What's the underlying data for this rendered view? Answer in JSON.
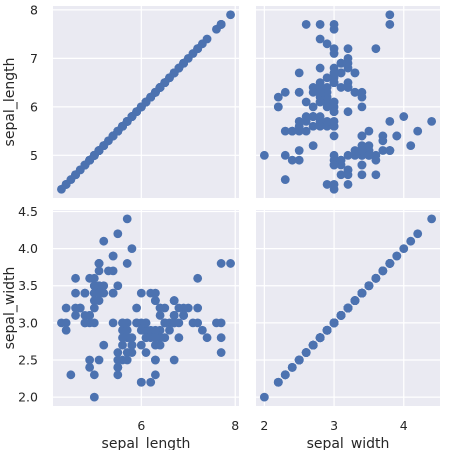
{
  "chart_data": {
    "type": "scatter",
    "kind": "pairplot-scatter-matrix",
    "variables": [
      "sepal_length",
      "sepal_width"
    ],
    "x_labels": [
      "sepal_length",
      "sepal_width"
    ],
    "y_labels": [
      "sepal_length",
      "sepal_width"
    ],
    "x_ticks": [
      [
        6,
        8
      ],
      [
        2,
        3,
        4
      ]
    ],
    "y_ticks": [
      [
        5,
        6,
        7,
        8
      ],
      [
        2.0,
        2.5,
        3.0,
        3.5,
        4.0,
        4.5
      ]
    ],
    "y_tick_labels": [
      [
        "5",
        "6",
        "7",
        "8"
      ],
      [
        "2.0",
        "2.5",
        "3.0",
        "3.5",
        "4.0",
        "4.5"
      ]
    ],
    "ranges": {
      "sepal_length": [
        4.12,
        8.08
      ],
      "sepal_width": [
        1.88,
        4.52
      ]
    },
    "grid": true,
    "point_color": "#4c72b0",
    "background": "#eaeaf2",
    "sepal_length": [
      5.1,
      4.9,
      4.7,
      4.6,
      5.0,
      5.4,
      4.6,
      5.0,
      4.4,
      4.9,
      5.4,
      4.8,
      4.8,
      4.3,
      5.8,
      5.7,
      5.4,
      5.1,
      5.7,
      5.1,
      5.4,
      5.1,
      4.6,
      5.1,
      4.8,
      5.0,
      5.0,
      5.2,
      5.2,
      4.7,
      4.8,
      5.4,
      5.2,
      5.5,
      4.9,
      5.0,
      5.5,
      4.9,
      4.4,
      5.1,
      5.0,
      4.5,
      4.4,
      5.0,
      5.1,
      4.8,
      5.1,
      4.6,
      5.3,
      5.0,
      7.0,
      6.4,
      6.9,
      5.5,
      6.5,
      5.7,
      6.3,
      4.9,
      6.6,
      5.2,
      5.0,
      5.9,
      6.0,
      6.1,
      5.6,
      6.7,
      5.6,
      5.8,
      6.2,
      5.6,
      5.9,
      6.1,
      6.3,
      6.1,
      6.4,
      6.6,
      6.8,
      6.7,
      6.0,
      5.7,
      5.5,
      5.5,
      5.8,
      6.0,
      5.4,
      6.0,
      6.7,
      6.3,
      5.6,
      5.5,
      5.5,
      6.1,
      5.8,
      5.0,
      5.6,
      5.7,
      5.7,
      6.2,
      5.1,
      5.7,
      6.3,
      5.8,
      7.1,
      6.3,
      6.5,
      7.6,
      4.9,
      7.3,
      6.7,
      7.2,
      6.5,
      6.4,
      6.8,
      5.7,
      5.8,
      6.4,
      6.5,
      7.7,
      7.7,
      6.0,
      6.9,
      5.6,
      7.7,
      6.3,
      6.7,
      7.2,
      6.2,
      6.1,
      6.4,
      7.2,
      7.4,
      7.9,
      6.4,
      6.3,
      6.1,
      7.7,
      6.3,
      6.4,
      6.0,
      6.9,
      6.7,
      6.9,
      5.8,
      6.8,
      6.7,
      6.7,
      6.3,
      6.5,
      6.2,
      5.9
    ],
    "sepal_width": [
      3.5,
      3.0,
      3.2,
      3.1,
      3.6,
      3.9,
      3.4,
      3.4,
      2.9,
      3.1,
      3.7,
      3.4,
      3.0,
      3.0,
      4.0,
      4.4,
      3.9,
      3.5,
      3.8,
      3.8,
      3.4,
      3.7,
      3.6,
      3.3,
      3.4,
      3.0,
      3.4,
      3.5,
      3.4,
      3.2,
      3.1,
      3.4,
      4.1,
      4.2,
      3.1,
      3.2,
      3.5,
      3.6,
      3.0,
      3.4,
      3.5,
      2.3,
      3.2,
      3.5,
      3.8,
      3.0,
      3.8,
      3.2,
      3.7,
      3.3,
      3.2,
      3.2,
      3.1,
      2.3,
      2.8,
      2.8,
      3.3,
      2.4,
      2.9,
      2.7,
      2.0,
      3.0,
      2.2,
      2.9,
      2.9,
      3.1,
      3.0,
      2.7,
      2.2,
      2.5,
      3.2,
      2.8,
      2.5,
      2.8,
      2.9,
      3.0,
      2.8,
      3.0,
      2.9,
      2.6,
      2.4,
      2.4,
      2.7,
      2.7,
      3.0,
      3.4,
      3.1,
      2.3,
      3.0,
      2.5,
      2.6,
      3.0,
      2.6,
      2.3,
      2.7,
      3.0,
      2.9,
      2.9,
      2.5,
      2.8,
      3.3,
      2.7,
      3.0,
      2.9,
      3.0,
      3.0,
      2.5,
      2.9,
      2.5,
      3.6,
      3.2,
      2.7,
      3.0,
      2.5,
      2.8,
      3.2,
      3.0,
      3.8,
      2.6,
      2.2,
      3.2,
      2.8,
      2.8,
      2.7,
      3.3,
      3.2,
      2.8,
      3.0,
      2.8,
      3.0,
      2.8,
      3.8,
      2.8,
      2.8,
      2.6,
      3.0,
      3.4,
      3.1,
      3.0,
      3.1,
      3.1,
      3.1,
      2.7,
      3.2,
      3.3,
      3.0,
      2.5,
      3.0,
      3.4,
      3.0
    ]
  }
}
